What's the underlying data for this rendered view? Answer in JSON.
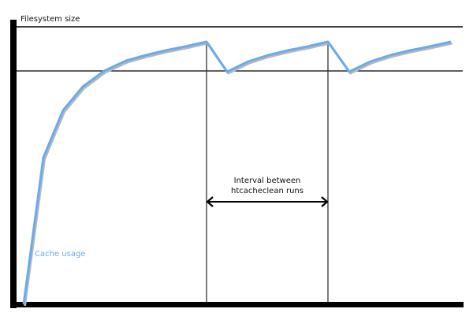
{
  "diagram": {
    "y_axis_label": "Filesystem size",
    "series_label": "Cache usage",
    "interval_label_line1": "Interval between",
    "interval_label_line2": "htcacheclean runs",
    "colors": {
      "cache_line": "#6aaaf0",
      "shadow": "#b8b8b8",
      "axis": "#000000"
    }
  }
}
